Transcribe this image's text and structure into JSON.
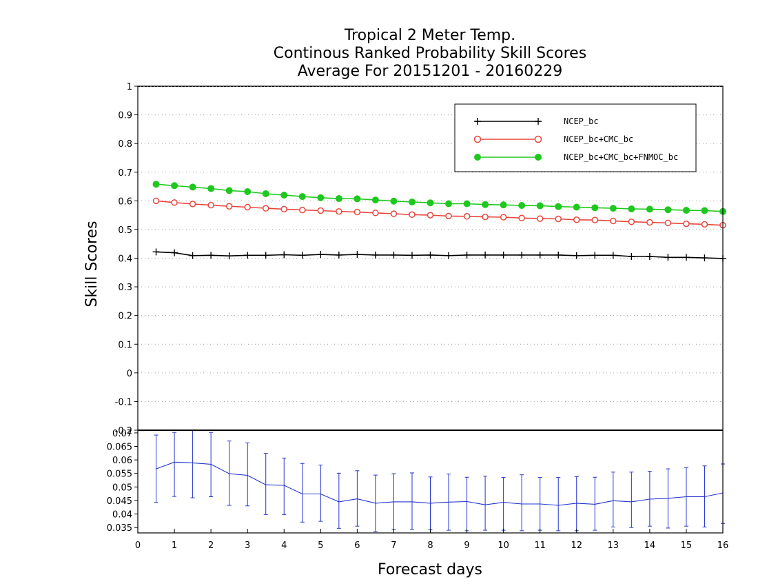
{
  "chart_data": [
    {
      "type": "line",
      "title": [
        "Tropical 2 Meter Temp.",
        "Continous Ranked Probability Skill Scores",
        "Average For 20151201 - 20160229"
      ],
      "xlabel": "Forecast days",
      "ylabel": "Skill Scores",
      "xlim": [
        0,
        16
      ],
      "ylim": [
        -0.2,
        1
      ],
      "x_ticks": [
        "0",
        "1",
        "2",
        "3",
        "4",
        "5",
        "6",
        "7",
        "8",
        "9",
        "10",
        "11",
        "12",
        "13",
        "14",
        "15",
        "16"
      ],
      "y_ticks": [
        "-0.2",
        "-0.1",
        "0",
        "0.1",
        "0.2",
        "0.3",
        "0.4",
        "0.5",
        "0.6",
        "0.7",
        "0.8",
        "0.9",
        "1"
      ],
      "grid": "horizontal dotted",
      "legend_position": "top-right",
      "x": [
        0.5,
        1,
        1.5,
        2,
        2.5,
        3,
        3.5,
        4,
        4.5,
        5,
        5.5,
        6,
        6.5,
        7,
        7.5,
        8,
        8.5,
        9,
        9.5,
        10,
        10.5,
        11,
        11.5,
        12,
        12.5,
        13,
        13.5,
        14,
        14.5,
        15,
        15.5,
        16
      ],
      "series": [
        {
          "name": "NCEP_bc",
          "color": "#000000",
          "marker": "plus",
          "values": [
            0.422,
            0.419,
            0.409,
            0.41,
            0.408,
            0.41,
            0.41,
            0.412,
            0.41,
            0.413,
            0.411,
            0.413,
            0.411,
            0.411,
            0.41,
            0.411,
            0.409,
            0.411,
            0.411,
            0.411,
            0.411,
            0.411,
            0.411,
            0.409,
            0.41,
            0.41,
            0.406,
            0.406,
            0.403,
            0.403,
            0.401,
            0.399
          ]
        },
        {
          "name": "NCEP_bc+CMC_bc",
          "color": "#e8463c",
          "marker": "open-circle",
          "values": [
            0.6,
            0.594,
            0.589,
            0.585,
            0.581,
            0.578,
            0.574,
            0.571,
            0.568,
            0.566,
            0.563,
            0.561,
            0.558,
            0.555,
            0.552,
            0.55,
            0.547,
            0.546,
            0.544,
            0.543,
            0.54,
            0.538,
            0.537,
            0.534,
            0.533,
            0.53,
            0.527,
            0.525,
            0.523,
            0.52,
            0.518,
            0.515
          ]
        },
        {
          "name": "NCEP_bc+CMC_bc+FNMOC_bc",
          "color": "#1ec81e",
          "marker": "filled-circle",
          "values": [
            0.658,
            0.653,
            0.648,
            0.643,
            0.636,
            0.632,
            0.625,
            0.62,
            0.615,
            0.611,
            0.608,
            0.607,
            0.603,
            0.599,
            0.596,
            0.593,
            0.59,
            0.59,
            0.587,
            0.586,
            0.584,
            0.583,
            0.58,
            0.578,
            0.576,
            0.574,
            0.572,
            0.571,
            0.569,
            0.567,
            0.566,
            0.563
          ]
        }
      ]
    },
    {
      "type": "line",
      "xlim": [
        0,
        16
      ],
      "ylim": [
        0.033,
        0.071
      ],
      "y_ticks": [
        "0.035",
        "0.04",
        "0.045",
        "0.05",
        "0.055",
        "0.06",
        "0.065",
        "0.07"
      ],
      "color": "#2233cc",
      "x": [
        0.5,
        1,
        1.5,
        2,
        2.5,
        3,
        3.5,
        4,
        4.5,
        5,
        5.5,
        6,
        6.5,
        7,
        7.5,
        8,
        8.5,
        9,
        9.5,
        10,
        10.5,
        11,
        11.5,
        12,
        12.5,
        13,
        13.5,
        14,
        14.5,
        15,
        15.5,
        16
      ],
      "values": [
        0.0567,
        0.0592,
        0.0589,
        0.0584,
        0.0549,
        0.0543,
        0.0508,
        0.0506,
        0.0474,
        0.0474,
        0.0445,
        0.0456,
        0.044,
        0.0445,
        0.0445,
        0.044,
        0.0444,
        0.0446,
        0.0434,
        0.0443,
        0.0437,
        0.0437,
        0.0432,
        0.044,
        0.0436,
        0.0449,
        0.0445,
        0.0455,
        0.0458,
        0.0464,
        0.0464,
        0.0478
      ],
      "error_low": [
        0.0443,
        0.0465,
        0.046,
        0.0464,
        0.0432,
        0.043,
        0.0398,
        0.0398,
        0.037,
        0.0373,
        0.0347,
        0.0355,
        0.0335,
        0.0342,
        0.0343,
        0.0342,
        0.034,
        0.0338,
        0.034,
        0.034,
        0.0338,
        0.034,
        0.0338,
        0.0338,
        0.034,
        0.0352,
        0.035,
        0.0355,
        0.0348,
        0.0355,
        0.0352,
        0.0365
      ],
      "error_high": [
        0.0692,
        0.0702,
        0.071,
        0.0702,
        0.067,
        0.0663,
        0.0624,
        0.0607,
        0.0587,
        0.0581,
        0.0551,
        0.056,
        0.0544,
        0.0549,
        0.0552,
        0.0537,
        0.0548,
        0.0536,
        0.054,
        0.0535,
        0.0545,
        0.0535,
        0.0535,
        0.0538,
        0.0536,
        0.0555,
        0.0555,
        0.0558,
        0.0567,
        0.0572,
        0.0578,
        0.0585
      ]
    }
  ]
}
